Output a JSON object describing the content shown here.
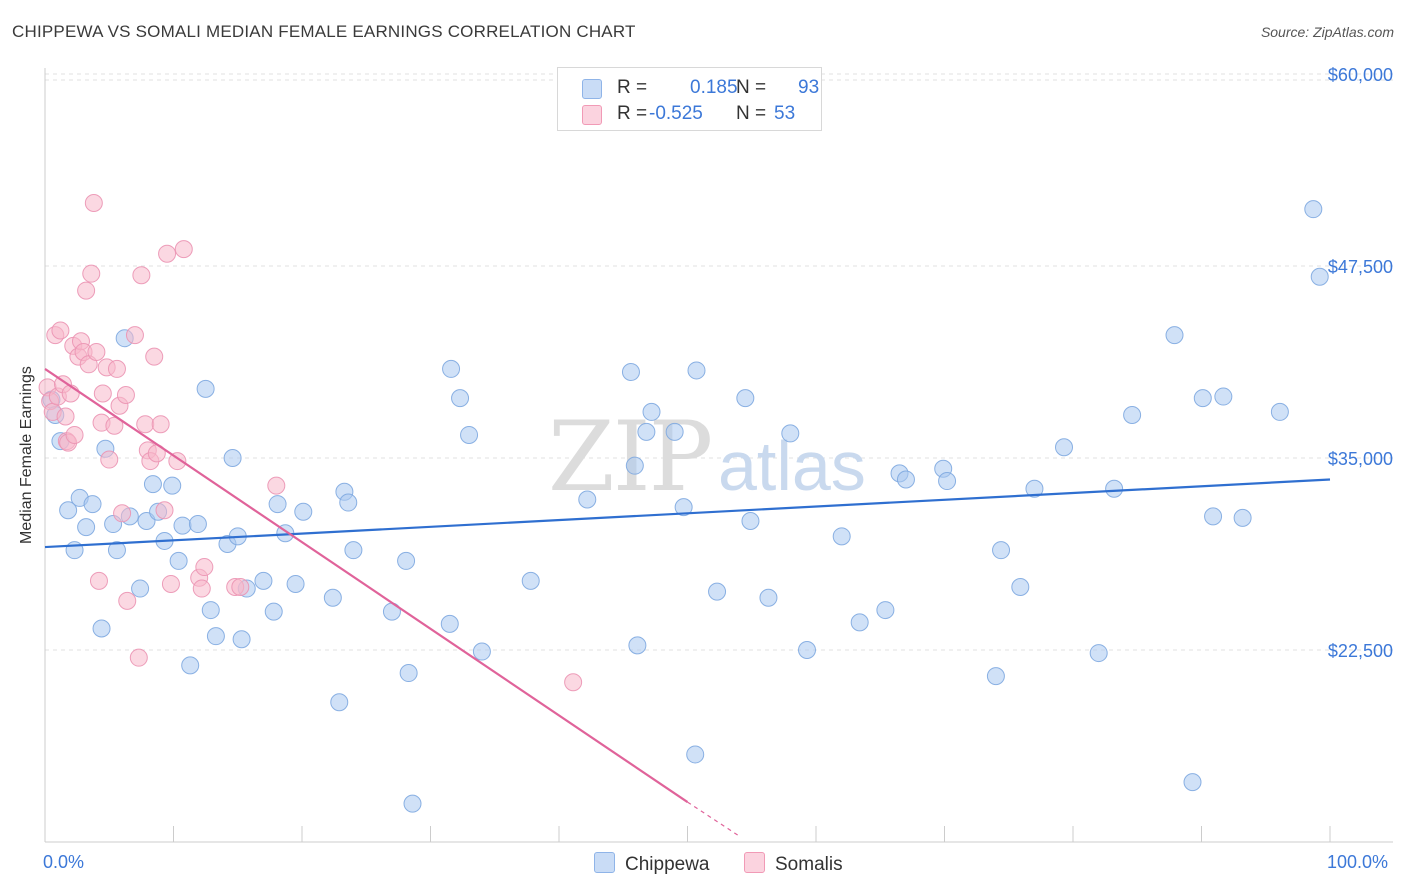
{
  "title": "CHIPPEWA VS SOMALI MEDIAN FEMALE EARNINGS CORRELATION CHART",
  "source": "Source: ZipAtlas.com",
  "watermark": "ZIPatlas",
  "legend_top": {
    "rows": [
      {
        "r_label": "R =",
        "r_value": "0.185",
        "n_label": "N =",
        "n_value": "93",
        "color": "#a9c8f0"
      },
      {
        "r_label": "R =",
        "r_value": "-0.525",
        "n_label": "N =",
        "n_value": "53",
        "color": "#f7b8cb"
      }
    ]
  },
  "legend_bottom": {
    "chippewa_label": "Chippewa",
    "somalis_label": "Somalis"
  },
  "colors": {
    "chippewa_fill": "#a9c8f0",
    "chippewa_line": "#2f6fd0",
    "somalis_fill": "#f7b8cb",
    "somalis_line": "#e0639a",
    "tick_text": "#3c78d8"
  },
  "chart_data": {
    "type": "scatter",
    "title": "CHIPPEWA VS SOMALI MEDIAN FEMALE EARNINGS CORRELATION CHART",
    "xlabel": "",
    "ylabel": "Median Female Earnings",
    "xlim": [
      0,
      100
    ],
    "ylim": [
      10000,
      62000
    ],
    "x_tick_labels": [
      "0.0%",
      "100.0%"
    ],
    "y_ticks": [
      {
        "value": 22500,
        "label": "$22,500"
      },
      {
        "value": 35000,
        "label": "$35,000"
      },
      {
        "value": 47500,
        "label": "$47,500"
      },
      {
        "value": 60000,
        "label": "$60,000"
      }
    ],
    "series": [
      {
        "name": "Chippewa",
        "r": 0.185,
        "n": 93,
        "trend": {
          "x": [
            0,
            100
          ],
          "y": [
            29200,
            33600
          ]
        },
        "points": [
          [
            0.5,
            38800
          ],
          [
            0.8,
            37800
          ],
          [
            1.2,
            36100
          ],
          [
            1.8,
            31600
          ],
          [
            2.3,
            29000
          ],
          [
            2.7,
            32400
          ],
          [
            3.2,
            30500
          ],
          [
            3.7,
            32000
          ],
          [
            4.4,
            23900
          ],
          [
            4.7,
            35600
          ],
          [
            5.3,
            30700
          ],
          [
            5.6,
            29000
          ],
          [
            6.2,
            42800
          ],
          [
            6.6,
            31200
          ],
          [
            7.4,
            26500
          ],
          [
            7.9,
            30900
          ],
          [
            8.4,
            33300
          ],
          [
            8.8,
            31500
          ],
          [
            9.3,
            29600
          ],
          [
            9.9,
            33200
          ],
          [
            10.4,
            28300
          ],
          [
            10.7,
            30600
          ],
          [
            11.3,
            21500
          ],
          [
            11.9,
            30700
          ],
          [
            12.5,
            39500
          ],
          [
            12.9,
            25100
          ],
          [
            13.3,
            23400
          ],
          [
            14.2,
            29400
          ],
          [
            14.6,
            35000
          ],
          [
            15.0,
            29900
          ],
          [
            15.3,
            23200
          ],
          [
            15.7,
            26500
          ],
          [
            17.0,
            27000
          ],
          [
            17.8,
            25000
          ],
          [
            18.1,
            32000
          ],
          [
            18.7,
            30100
          ],
          [
            19.5,
            26800
          ],
          [
            20.1,
            31500
          ],
          [
            22.4,
            25900
          ],
          [
            22.9,
            19100
          ],
          [
            23.3,
            32800
          ],
          [
            23.6,
            32100
          ],
          [
            24.0,
            29000
          ],
          [
            27.0,
            25000
          ],
          [
            28.1,
            28300
          ],
          [
            28.3,
            21000
          ],
          [
            28.6,
            12500
          ],
          [
            31.5,
            24200
          ],
          [
            31.6,
            40800
          ],
          [
            32.3,
            38900
          ],
          [
            33.0,
            36500
          ],
          [
            34.0,
            22400
          ],
          [
            37.8,
            27000
          ],
          [
            42.2,
            32300
          ],
          [
            45.6,
            40600
          ],
          [
            45.9,
            34500
          ],
          [
            46.1,
            22800
          ],
          [
            46.8,
            36700
          ],
          [
            47.2,
            38000
          ],
          [
            49.0,
            36700
          ],
          [
            49.7,
            31800
          ],
          [
            50.6,
            15700
          ],
          [
            50.7,
            40700
          ],
          [
            52.3,
            26300
          ],
          [
            54.5,
            38900
          ],
          [
            54.9,
            30900
          ],
          [
            56.3,
            25900
          ],
          [
            58.0,
            36600
          ],
          [
            59.3,
            22500
          ],
          [
            62.0,
            29900
          ],
          [
            63.4,
            24300
          ],
          [
            65.4,
            25100
          ],
          [
            66.5,
            34000
          ],
          [
            67.0,
            33600
          ],
          [
            69.9,
            34300
          ],
          [
            70.2,
            33500
          ],
          [
            74.4,
            29000
          ],
          [
            74.0,
            20800
          ],
          [
            75.9,
            26600
          ],
          [
            77.0,
            33000
          ],
          [
            79.3,
            35700
          ],
          [
            82.0,
            22300
          ],
          [
            83.2,
            33000
          ],
          [
            84.6,
            37800
          ],
          [
            87.9,
            43000
          ],
          [
            89.3,
            13900
          ],
          [
            90.1,
            38900
          ],
          [
            90.9,
            31200
          ],
          [
            91.7,
            39000
          ],
          [
            93.2,
            31100
          ],
          [
            96.1,
            38000
          ],
          [
            98.7,
            51200
          ],
          [
            99.2,
            46800
          ]
        ]
      },
      {
        "name": "Somalis",
        "r": -0.525,
        "n": 53,
        "trend": {
          "x": [
            0,
            50
          ],
          "y": [
            40800,
            12600
          ]
        },
        "trend_dashed": {
          "x": [
            50,
            54
          ],
          "y": [
            12600,
            10400
          ]
        },
        "points": [
          [
            0.2,
            39600
          ],
          [
            0.4,
            38700
          ],
          [
            0.6,
            38000
          ],
          [
            0.8,
            43000
          ],
          [
            1.0,
            39000
          ],
          [
            1.2,
            43300
          ],
          [
            1.4,
            39800
          ],
          [
            1.6,
            37700
          ],
          [
            1.7,
            36100
          ],
          [
            1.8,
            36000
          ],
          [
            2.0,
            39200
          ],
          [
            2.2,
            42300
          ],
          [
            2.3,
            36500
          ],
          [
            2.6,
            41600
          ],
          [
            2.8,
            42600
          ],
          [
            3.0,
            41900
          ],
          [
            3.2,
            45900
          ],
          [
            3.4,
            41100
          ],
          [
            3.6,
            47000
          ],
          [
            3.8,
            51600
          ],
          [
            4.0,
            41900
          ],
          [
            4.2,
            27000
          ],
          [
            4.4,
            37300
          ],
          [
            4.5,
            39200
          ],
          [
            4.8,
            40900
          ],
          [
            5.0,
            34900
          ],
          [
            5.4,
            37100
          ],
          [
            5.6,
            40800
          ],
          [
            5.8,
            38400
          ],
          [
            6.0,
            31400
          ],
          [
            6.3,
            39100
          ],
          [
            6.4,
            25700
          ],
          [
            7.0,
            43000
          ],
          [
            7.3,
            22000
          ],
          [
            7.5,
            46900
          ],
          [
            7.8,
            37200
          ],
          [
            8.0,
            35500
          ],
          [
            8.2,
            34800
          ],
          [
            8.5,
            41600
          ],
          [
            8.7,
            35300
          ],
          [
            9.0,
            37200
          ],
          [
            9.3,
            31600
          ],
          [
            9.5,
            48300
          ],
          [
            9.8,
            26800
          ],
          [
            10.3,
            34800
          ],
          [
            10.8,
            48600
          ],
          [
            12.0,
            27200
          ],
          [
            12.2,
            26500
          ],
          [
            12.4,
            27900
          ],
          [
            14.8,
            26600
          ],
          [
            15.2,
            26600
          ],
          [
            18.0,
            33200
          ],
          [
            41.1,
            20400
          ]
        ]
      }
    ]
  }
}
